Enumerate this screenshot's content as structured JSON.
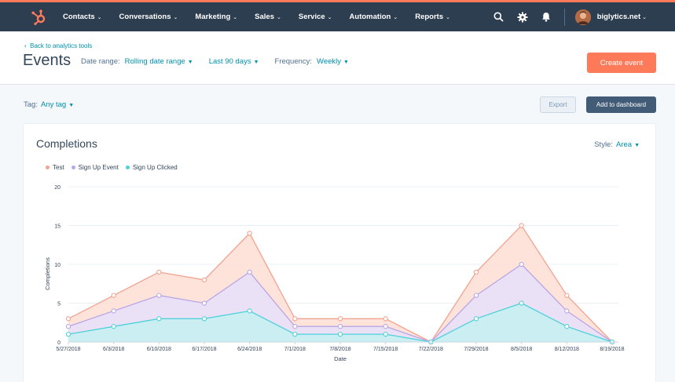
{
  "nav": {
    "items": [
      {
        "label": "Contacts"
      },
      {
        "label": "Conversations"
      },
      {
        "label": "Marketing"
      },
      {
        "label": "Sales"
      },
      {
        "label": "Service"
      },
      {
        "label": "Automation"
      },
      {
        "label": "Reports"
      }
    ],
    "account": "biglytics.net",
    "icons": [
      "hubspot-logo",
      "search-icon",
      "gear-icon",
      "bell-icon",
      "avatar"
    ],
    "accent": "#ff7a59",
    "bg": "#2d3e50"
  },
  "header": {
    "back_link": "Back to analytics tools",
    "title": "Events",
    "date_range_label": "Date range:",
    "date_range_value": "Rolling date range",
    "period_value": "Last 90 days",
    "frequency_label": "Frequency:",
    "frequency_value": "Weekly",
    "create_button": "Create event"
  },
  "toolbar": {
    "tag_label": "Tag:",
    "tag_value": "Any tag",
    "export_button": "Export",
    "dashboard_button": "Add to dashboard"
  },
  "card": {
    "title": "Completions",
    "style_label": "Style:",
    "style_value": "Area"
  },
  "chart_data": {
    "type": "area",
    "xlabel": "Date",
    "ylabel": "Completions",
    "ylim": [
      0,
      20
    ],
    "yticks": [
      0,
      5,
      10,
      15,
      20
    ],
    "grid": true,
    "legend_position": "top-left",
    "categories": [
      "5/27/2018",
      "6/3/2018",
      "6/10/2018",
      "6/17/2018",
      "6/24/2018",
      "7/1/2018",
      "7/8/2018",
      "7/15/2018",
      "7/22/2018",
      "7/29/2018",
      "8/5/2018",
      "8/12/2018",
      "8/19/2018"
    ],
    "series": [
      {
        "name": "Test",
        "color": "#f2a38f",
        "fill": "#fde0d6",
        "values": [
          3,
          6,
          9,
          8,
          14,
          3,
          3,
          3,
          0,
          9,
          15,
          6,
          0
        ]
      },
      {
        "name": "Sign Up Event",
        "color": "#b9a6e6",
        "fill": "#e8e0f8",
        "values": [
          2,
          4,
          6,
          5,
          9,
          2,
          2,
          2,
          0,
          6,
          10,
          4,
          0
        ]
      },
      {
        "name": "Sign Up Clicked",
        "color": "#4fd1d9",
        "fill": "#c6f0f2",
        "values": [
          1,
          2,
          3,
          3,
          4,
          1,
          1,
          1,
          0,
          3,
          5,
          2,
          0
        ]
      }
    ]
  }
}
